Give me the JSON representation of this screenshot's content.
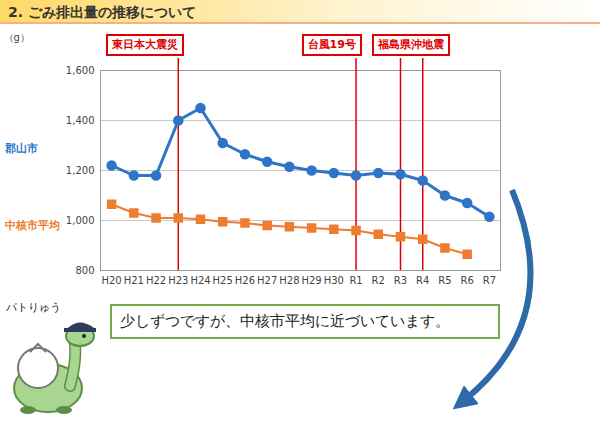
{
  "chart_data": {
    "type": "line",
    "title": "2. ごみ排出量の推移について",
    "y_label": "（g）",
    "categories": [
      "H20",
      "H21",
      "H22",
      "H23",
      "H24",
      "H25",
      "H26",
      "H27",
      "H28",
      "H29",
      "H30",
      "R1",
      "R2",
      "R3",
      "R4",
      "R5",
      "R6",
      "R7"
    ],
    "series": [
      {
        "name": "郡山市",
        "color": "#2e75c8",
        "marker": "circle",
        "line_style": "solid",
        "values": [
          1220,
          1180,
          1180,
          1400,
          1450,
          1310,
          1265,
          1235,
          1215,
          1200,
          1190,
          1180,
          1190,
          1185,
          1160,
          1100,
          1070,
          1015
        ]
      },
      {
        "name": "中核市平均",
        "color": "#ed7d31",
        "marker": "square",
        "line_style": "solid",
        "values": [
          1065,
          1030,
          1010,
          1010,
          1005,
          995,
          990,
          980,
          975,
          970,
          965,
          960,
          945,
          935,
          925,
          890,
          865,
          null
        ]
      }
    ],
    "ylim": [
      800,
      1600
    ],
    "yticks": [
      800,
      {
        "value": 1000,
        "label": "1,000"
      },
      {
        "value": 1200,
        "label": "1,200"
      },
      {
        "value": 1400,
        "label": "1,400"
      },
      {
        "value": 1600,
        "label": "1,600"
      }
    ],
    "grid": true,
    "events": [
      {
        "label": "東日本大震災",
        "x": [
          "H23"
        ]
      },
      {
        "label": "台風19号",
        "x": [
          "R1"
        ]
      },
      {
        "label": "福島県沖地震",
        "x": [
          "R3",
          "R4"
        ]
      }
    ],
    "caption": "少しずつですが、中核市平均に近づいています。",
    "character": "パトりゅう"
  }
}
